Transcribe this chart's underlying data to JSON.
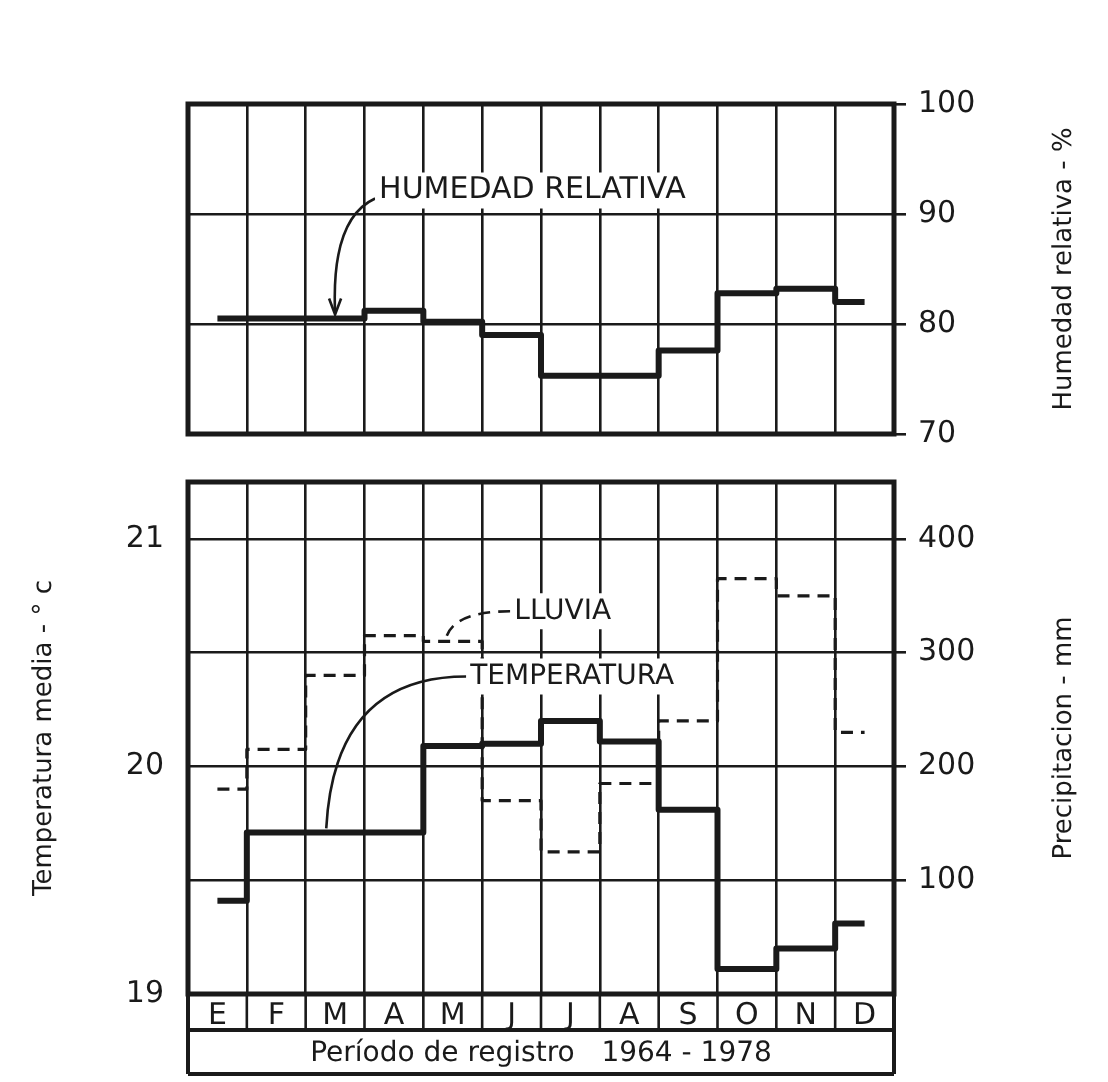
{
  "chart_data": [
    {
      "type": "step",
      "categories": [
        "E",
        "F",
        "M",
        "A",
        "M",
        "J",
        "J",
        "A",
        "S",
        "O",
        "N",
        "D"
      ],
      "values": [
        80.5,
        80.5,
        80.5,
        81.2,
        80.2,
        79,
        75.3,
        75.3,
        77.6,
        82.8,
        83.2,
        82
      ],
      "color": "#1a1a1a",
      "ylabel": "Humedad relativa - %",
      "ylim": [
        70,
        100
      ],
      "yticks": [
        70,
        80,
        90,
        100
      ],
      "grid": true,
      "tick_labels": "y",
      "annotations": [
        {
          "text": "HUMEDAD RELATIVA",
          "x": "M",
          "y": 80.5
        }
      ]
    },
    {
      "type": "step",
      "categories": [
        "E",
        "F",
        "M",
        "A",
        "M",
        "J",
        "J",
        "A",
        "S",
        "O",
        "N",
        "D"
      ],
      "xlabel": "Período de registro   1964 - 1978",
      "ylabel": "Temperatura media - ° c",
      "y2label": "Precipitacion - mm",
      "series": [
        {
          "name": "TEMPERATURA",
          "color": "#1a1a1a",
          "line_style": "solid",
          "values": [
            19.41,
            19.71,
            19.71,
            19.71,
            20.09,
            20.1,
            20.2,
            20.11,
            19.81,
            19.11,
            19.2,
            19.31
          ]
        },
        {
          "name": "LLUVIA",
          "color": "#1a1a1a",
          "axis": "y2",
          "line_style": "dashed",
          "values": [
            180,
            215,
            280,
            315,
            310,
            170,
            125,
            185,
            240,
            365,
            350,
            230
          ]
        }
      ],
      "ylim": [
        19,
        21.25
      ],
      "yticks": [
        19,
        20,
        21
      ],
      "y2lim": [
        0,
        450
      ],
      "y2ticks": [
        100,
        200,
        300,
        400
      ],
      "grid": true
    }
  ]
}
